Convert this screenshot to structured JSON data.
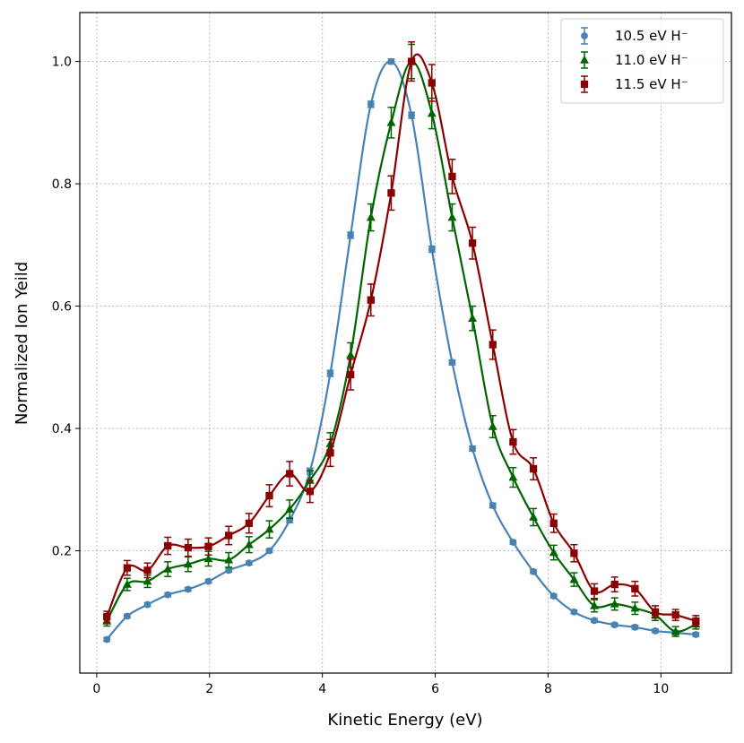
{
  "chart_data": {
    "type": "line",
    "title": "",
    "xlabel": "Kinetic Energy (eV)",
    "ylabel": "Normalized Ion Yeild",
    "xlim": [
      -0.3,
      11.25
    ],
    "ylim": [
      0.0,
      1.08
    ],
    "xticks": [
      "0",
      "2",
      "4",
      "6",
      "8",
      "10"
    ],
    "yticks": [
      "0.2",
      "0.4",
      "0.6",
      "0.8",
      "1.0"
    ],
    "grid": true,
    "legend_position": "top-right",
    "x": [
      0.18,
      0.54,
      0.9,
      1.26,
      1.62,
      1.98,
      2.34,
      2.7,
      3.06,
      3.42,
      3.78,
      4.14,
      4.5,
      4.86,
      5.22,
      5.58,
      5.94,
      6.3,
      6.66,
      7.02,
      7.38,
      7.74,
      8.1,
      8.46,
      8.82,
      9.18,
      9.54,
      9.9,
      10.26,
      10.62
    ],
    "series": [
      {
        "name": "10.5 eV H⁻",
        "marker": "circle",
        "color": "#4682b4",
        "x_offset": 0.0,
        "values": [
          0.055,
          0.093,
          0.112,
          0.128,
          0.137,
          0.15,
          0.168,
          0.18,
          0.2,
          0.25,
          0.33,
          0.49,
          0.716,
          0.93,
          1.0,
          0.912,
          0.693,
          0.508,
          0.367,
          0.274,
          0.214,
          0.166,
          0.126,
          0.1,
          0.086,
          0.079,
          0.075,
          0.069,
          0.066,
          0.063
        ],
        "errors": [
          0.003,
          0.003,
          0.003,
          0.003,
          0.003,
          0.003,
          0.003,
          0.003,
          0.003,
          0.004,
          0.005,
          0.005,
          0.005,
          0.005,
          0.004,
          0.005,
          0.005,
          0.004,
          0.004,
          0.004,
          0.003,
          0.003,
          0.003,
          0.003,
          0.003,
          0.003,
          0.003,
          0.003,
          0.003,
          0.003
        ]
      },
      {
        "name": "11.0 eV H⁻",
        "marker": "triangle",
        "color": "#006400",
        "x_offset": 0.0,
        "values": [
          0.085,
          0.145,
          0.15,
          0.17,
          0.178,
          0.187,
          0.185,
          0.21,
          0.235,
          0.268,
          0.315,
          0.375,
          0.52,
          0.745,
          0.9,
          1.0,
          0.915,
          0.745,
          0.58,
          0.403,
          0.32,
          0.255,
          0.197,
          0.153,
          0.11,
          0.113,
          0.106,
          0.095,
          0.068,
          0.08
        ],
        "errors": [
          0.008,
          0.01,
          0.01,
          0.012,
          0.012,
          0.012,
          0.012,
          0.013,
          0.014,
          0.015,
          0.016,
          0.018,
          0.02,
          0.022,
          0.025,
          0.028,
          0.025,
          0.022,
          0.02,
          0.018,
          0.016,
          0.014,
          0.012,
          0.011,
          0.01,
          0.01,
          0.01,
          0.009,
          0.008,
          0.008
        ]
      },
      {
        "name": "11.5 eV H⁻",
        "marker": "square",
        "color": "#8b0000",
        "x_offset": 0.0,
        "values": [
          0.092,
          0.172,
          0.168,
          0.208,
          0.205,
          0.207,
          0.225,
          0.245,
          0.29,
          0.326,
          0.297,
          0.36,
          0.488,
          0.61,
          0.785,
          1.0,
          0.965,
          0.812,
          0.703,
          0.537,
          0.378,
          0.334,
          0.245,
          0.196,
          0.134,
          0.145,
          0.138,
          0.1,
          0.095,
          0.085
        ],
        "errors": [
          0.009,
          0.012,
          0.012,
          0.014,
          0.014,
          0.014,
          0.015,
          0.016,
          0.018,
          0.02,
          0.018,
          0.022,
          0.025,
          0.026,
          0.028,
          0.032,
          0.03,
          0.028,
          0.026,
          0.024,
          0.02,
          0.018,
          0.015,
          0.014,
          0.012,
          0.012,
          0.012,
          0.01,
          0.009,
          0.009
        ]
      }
    ]
  }
}
